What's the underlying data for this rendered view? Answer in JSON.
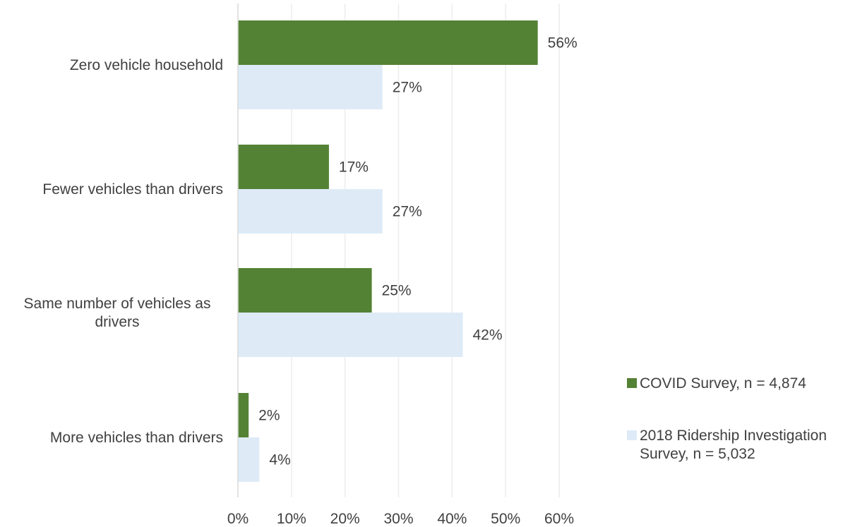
{
  "chart_data": {
    "type": "bar",
    "orientation": "horizontal",
    "categories": [
      "Zero vehicle household",
      "Fewer vehicles than drivers",
      "Same number of vehicles as drivers",
      "More vehicles than drivers"
    ],
    "series": [
      {
        "name": "COVID Survey, n = 4,874",
        "color": "#548235",
        "values": [
          56,
          17,
          25,
          2
        ],
        "labels": [
          "56%",
          "17%",
          "25%",
          "2%"
        ]
      },
      {
        "name": "2018 Ridership Investigation Survey, n = 5,032",
        "color": "#deebf7",
        "values": [
          27,
          27,
          42,
          4
        ],
        "labels": [
          "27%",
          "27%",
          "42%",
          "4%"
        ]
      }
    ],
    "xlim": [
      0,
      60
    ],
    "x_ticks": [
      "0%",
      "10%",
      "20%",
      "30%",
      "40%",
      "50%",
      "60%"
    ],
    "title": "",
    "xlabel": "",
    "ylabel": "",
    "grid": "vertical",
    "legend_position": "right"
  }
}
